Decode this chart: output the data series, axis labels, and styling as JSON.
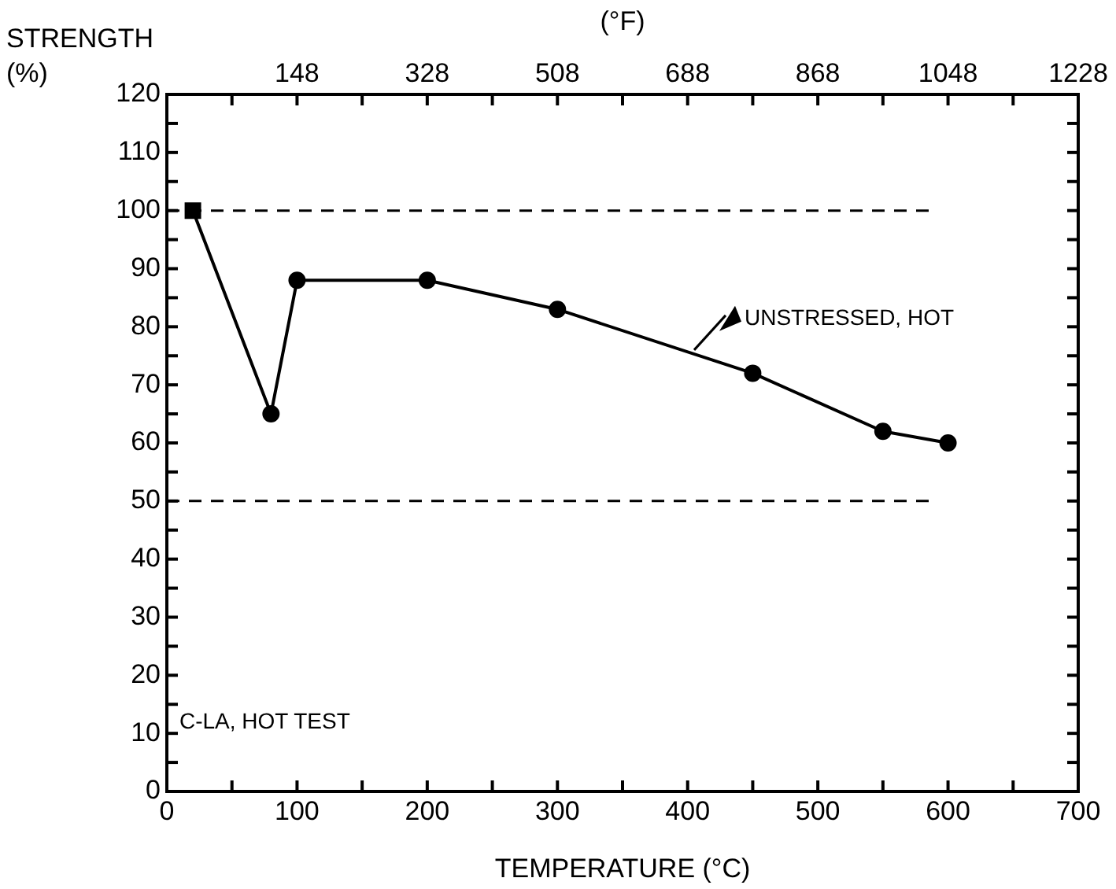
{
  "chart_data": {
    "type": "line",
    "ylabel": "STRENGTH\n(%)",
    "xlabel": "TEMPERATURE (°C)",
    "x2label": "(°F)",
    "series": [
      {
        "color": "#000000",
        "marker": "none",
        "x": [
          20,
          80,
          100,
          200,
          300,
          450,
          550,
          600
        ],
        "values": [
          100,
          65,
          88,
          88,
          83,
          72,
          62,
          60
        ]
      },
      {
        "type": "scatter",
        "color": "#000000",
        "marker": "circle",
        "x": [
          80,
          100,
          200,
          300,
          450,
          550,
          600
        ],
        "values": [
          65,
          88,
          88,
          83,
          72,
          62,
          60
        ]
      },
      {
        "type": "scatter",
        "color": "#000000",
        "marker": "square",
        "x": [
          20
        ],
        "values": [
          100
        ]
      }
    ],
    "xlim": [
      0,
      700
    ],
    "xticks": [
      0,
      {
        "value": 50,
        "label": null
      },
      100,
      {
        "value": 150,
        "label": null
      },
      200,
      {
        "value": 250,
        "label": null
      },
      300,
      {
        "value": 350,
        "label": null
      },
      400,
      {
        "value": 450,
        "label": null
      },
      500,
      {
        "value": 550,
        "label": null
      },
      600,
      {
        "value": 650,
        "label": null
      },
      700
    ],
    "x2lim": [
      -32,
      1228
    ],
    "x2ticks": [
      {
        "value": 58,
        "label": null
      },
      148,
      {
        "value": 238,
        "label": null
      },
      328,
      {
        "value": 418,
        "label": null
      },
      508,
      {
        "value": 598,
        "label": null
      },
      688,
      {
        "value": 778,
        "label": null
      },
      868,
      {
        "value": 958,
        "label": null
      },
      1048,
      {
        "value": 1138,
        "label": null
      },
      1228
    ],
    "ylim": [
      0,
      120
    ],
    "yticks": [
      0,
      {
        "value": 5,
        "label": null
      },
      10,
      {
        "value": 15,
        "label": null
      },
      20,
      {
        "value": 25,
        "label": null
      },
      30,
      {
        "value": 35,
        "label": null
      },
      40,
      {
        "value": 45,
        "label": null
      },
      50,
      {
        "value": 55,
        "label": null
      },
      60,
      {
        "value": 65,
        "label": null
      },
      70,
      {
        "value": 75,
        "label": null
      },
      80,
      {
        "value": 85,
        "label": null
      },
      90,
      {
        "value": 95,
        "label": null
      },
      100,
      {
        "value": 105,
        "label": null
      },
      110,
      {
        "value": 115,
        "label": null
      },
      120
    ],
    "ref_lines": [
      {
        "axis": "y",
        "value": 100,
        "color": "#000000",
        "line_style": "dashed"
      },
      {
        "axis": "y",
        "value": 50,
        "color": "#000000",
        "line_style": "dashed"
      }
    ],
    "annotations": [
      {
        "text": "UNSTRESSED, HOT",
        "x": 405,
        "y": 76
      },
      "C-LA, HOT TEST"
    ],
    "grid": false,
    "legend": false
  }
}
